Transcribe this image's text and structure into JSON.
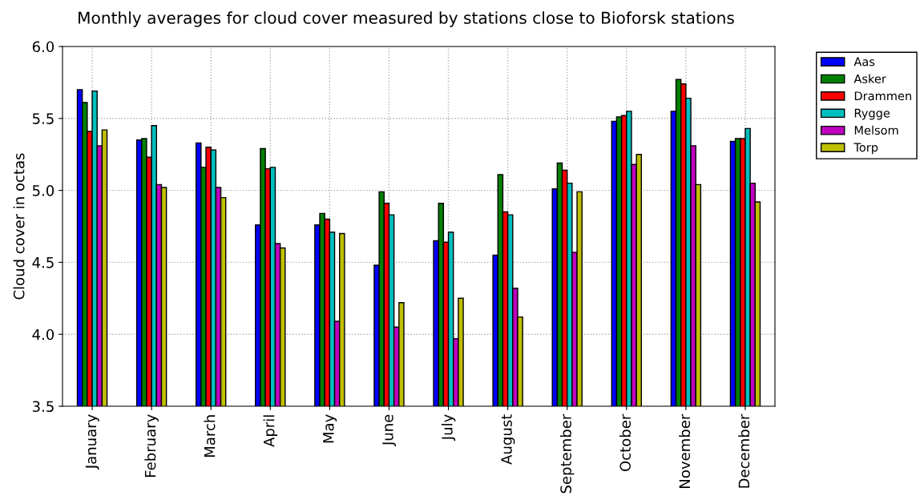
{
  "chart_data": {
    "type": "bar",
    "title": "Monthly averages for cloud cover measured by stations close to Bioforsk stations",
    "ylabel": "Cloud cover in octas",
    "categories": [
      "January",
      "February",
      "March",
      "April",
      "May",
      "June",
      "July",
      "August",
      "September",
      "October",
      "November",
      "December"
    ],
    "series": [
      {
        "name": "Aas",
        "color": "#0000ff",
        "values": [
          5.7,
          5.35,
          5.33,
          4.76,
          4.76,
          4.48,
          4.65,
          4.55,
          5.01,
          5.48,
          5.55,
          5.34
        ]
      },
      {
        "name": "Asker",
        "color": "#008000",
        "values": [
          5.61,
          5.36,
          5.16,
          5.29,
          4.84,
          4.99,
          4.91,
          5.11,
          5.19,
          5.51,
          5.77,
          5.36
        ]
      },
      {
        "name": "Drammen",
        "color": "#ff0000",
        "values": [
          5.41,
          5.23,
          5.3,
          5.15,
          4.8,
          4.91,
          4.64,
          4.85,
          5.14,
          5.52,
          5.74,
          5.36
        ]
      },
      {
        "name": "Rygge",
        "color": "#00bfbf",
        "values": [
          5.69,
          5.45,
          5.28,
          5.16,
          4.71,
          4.83,
          4.71,
          4.83,
          5.05,
          5.55,
          5.64,
          5.43
        ]
      },
      {
        "name": "Melsom",
        "color": "#bf00bf",
        "values": [
          5.31,
          5.04,
          5.02,
          4.63,
          4.09,
          4.05,
          3.97,
          4.32,
          4.57,
          5.18,
          5.31,
          5.05
        ]
      },
      {
        "name": "Torp",
        "color": "#bfbf00",
        "values": [
          5.42,
          5.02,
          4.95,
          4.6,
          4.7,
          4.22,
          4.25,
          4.12,
          4.99,
          5.25,
          5.04,
          4.92
        ]
      }
    ],
    "ylim": [
      3.5,
      6.0
    ],
    "yticks": [
      3.5,
      {
        "value": 4,
        "label": "4.0"
      },
      4.5,
      {
        "value": 5,
        "label": "5.0"
      },
      5.5,
      {
        "value": 6,
        "label": "6.0"
      }
    ],
    "grid": true,
    "legend": "top right"
  }
}
